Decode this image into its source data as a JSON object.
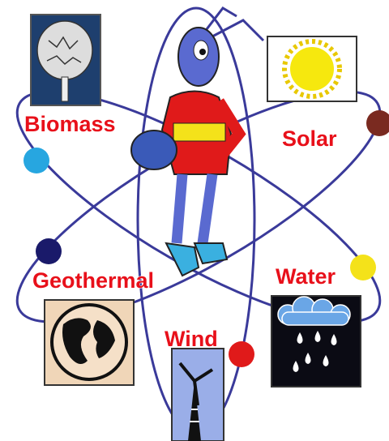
{
  "labels": [
    "Biomass",
    "Solar",
    "Geothermal",
    "Water",
    "Wind"
  ]
}
